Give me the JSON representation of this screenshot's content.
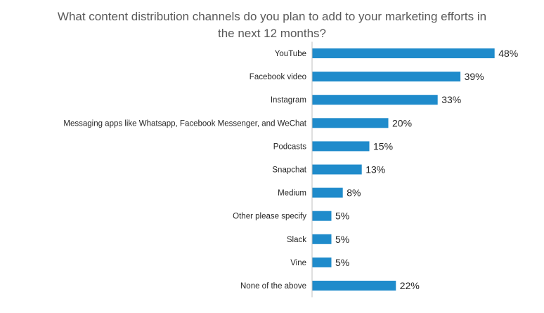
{
  "chart_data": {
    "type": "bar",
    "orientation": "horizontal",
    "title_lines": [
      "What content distribution channels do you plan to add to your marketing efforts in",
      "the next 12 months?"
    ],
    "categories": [
      "YouTube",
      "Facebook video",
      "Instagram",
      "Messaging apps like Whatsapp, Facebook Messenger, and WeChat",
      "Podcasts",
      "Snapchat",
      "Medium",
      "Other please specify",
      "Slack",
      "Vine",
      "None of the above"
    ],
    "values": [
      48,
      39,
      33,
      20,
      15,
      13,
      8,
      5,
      5,
      5,
      22
    ],
    "value_labels": [
      "48%",
      "39%",
      "33%",
      "20%",
      "15%",
      "13%",
      "8%",
      "5%",
      "5%",
      "5%",
      "22%"
    ],
    "unit": "%",
    "bar_color": "#1F8BCB",
    "axis_line": true,
    "grid": false,
    "legend": "none"
  }
}
